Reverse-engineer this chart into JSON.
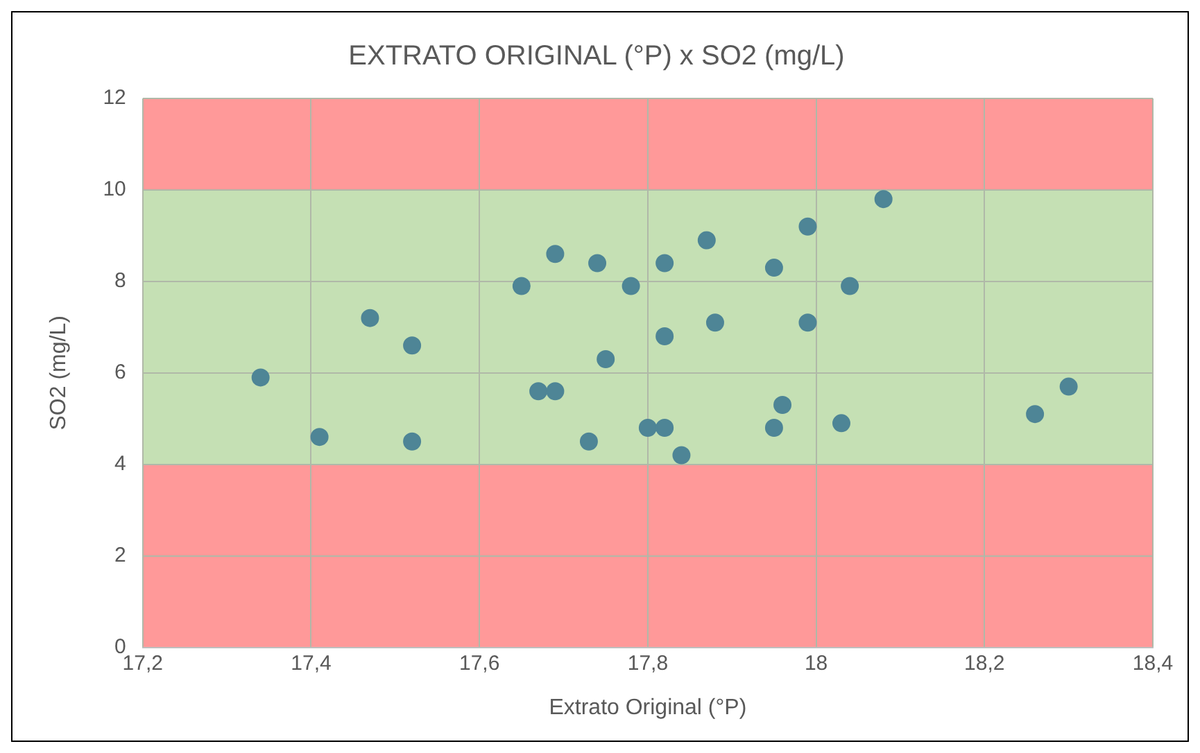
{
  "chart_data": {
    "type": "scatter",
    "title": "EXTRATO ORIGINAL (°P) x SO2 (mg/L)",
    "xlabel": "Extrato Original (°P)",
    "ylabel": "SO2 (mg/L)",
    "x": [
      17.34,
      17.41,
      17.47,
      17.52,
      17.52,
      17.65,
      17.67,
      17.69,
      17.69,
      17.73,
      17.74,
      17.75,
      17.78,
      17.8,
      17.82,
      17.82,
      17.82,
      17.84,
      17.87,
      17.88,
      17.95,
      17.95,
      17.96,
      17.99,
      17.99,
      18.03,
      18.04,
      18.08,
      18.26,
      18.3
    ],
    "series": [
      {
        "color": "#4e8596",
        "values": [
          5.9,
          4.6,
          7.2,
          6.6,
          4.5,
          7.9,
          5.6,
          8.6,
          5.6,
          4.5,
          8.4,
          6.3,
          7.9,
          4.8,
          8.4,
          6.8,
          4.8,
          4.2,
          8.9,
          7.1,
          8.3,
          4.8,
          5.3,
          9.2,
          7.1,
          4.9,
          7.9,
          9.8,
          5.1,
          5.7
        ]
      }
    ],
    "xlim": [
      17.2,
      18.4
    ],
    "xticks": [
      {
        "value": 17.2,
        "label": "17,2"
      },
      {
        "value": 17.4,
        "label": "17,4"
      },
      {
        "value": 17.6,
        "label": "17,6"
      },
      {
        "value": 17.8,
        "label": "17,8"
      },
      {
        "value": 18,
        "label": "18"
      },
      {
        "value": 18.2,
        "label": "18,2"
      },
      {
        "value": 18.4,
        "label": "18,4"
      }
    ],
    "ylim": [
      0,
      12
    ],
    "yticks": [
      0,
      2,
      4,
      6,
      8,
      10,
      12
    ],
    "bands": [
      {
        "axis": "y",
        "from": 0,
        "to": 4,
        "color": "#ff9999"
      },
      {
        "axis": "y",
        "from": 4,
        "to": 10,
        "color": "#c5e0b4"
      },
      {
        "axis": "y",
        "from": 10,
        "to": 12,
        "color": "#ff9999"
      }
    ],
    "grid": true,
    "legend": false,
    "marker": "circle"
  }
}
